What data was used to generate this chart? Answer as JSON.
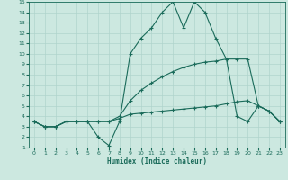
{
  "xlabel": "Humidex (Indice chaleur)",
  "xlim": [
    -0.5,
    23.5
  ],
  "ylim": [
    1,
    15
  ],
  "xticks": [
    0,
    1,
    2,
    3,
    4,
    5,
    6,
    7,
    8,
    9,
    10,
    11,
    12,
    13,
    14,
    15,
    16,
    17,
    18,
    19,
    20,
    21,
    22,
    23
  ],
  "yticks": [
    1,
    2,
    3,
    4,
    5,
    6,
    7,
    8,
    9,
    10,
    11,
    12,
    13,
    14,
    15
  ],
  "bg_color": "#cce8e0",
  "line_color": "#1a6b5a",
  "grid_color": "#b0d4cc",
  "lines": [
    {
      "x": [
        0,
        1,
        2,
        3,
        4,
        5,
        6,
        7,
        8,
        9,
        10,
        11,
        12,
        13,
        14,
        15,
        16,
        17,
        18,
        19,
        20,
        21,
        22,
        23
      ],
      "y": [
        3.5,
        3.0,
        3.0,
        3.5,
        3.5,
        3.5,
        2.0,
        1.2,
        3.5,
        10.0,
        11.5,
        12.5,
        14.0,
        15.0,
        12.5,
        15.0,
        14.0,
        11.5,
        9.5,
        4.0,
        3.5,
        5.0,
        4.5,
        3.5
      ]
    },
    {
      "x": [
        0,
        1,
        2,
        3,
        4,
        5,
        6,
        7,
        8,
        9,
        10,
        11,
        12,
        13,
        14,
        15,
        16,
        17,
        18,
        19,
        20,
        21,
        22,
        23
      ],
      "y": [
        3.5,
        3.0,
        3.0,
        3.5,
        3.5,
        3.5,
        3.5,
        3.5,
        3.8,
        4.2,
        4.3,
        4.4,
        4.5,
        4.6,
        4.7,
        4.8,
        4.9,
        5.0,
        5.2,
        5.4,
        5.5,
        5.0,
        4.5,
        3.5
      ]
    },
    {
      "x": [
        0,
        1,
        2,
        3,
        4,
        5,
        6,
        7,
        8,
        9,
        10,
        11,
        12,
        13,
        14,
        15,
        16,
        17,
        18,
        19,
        20,
        21,
        22,
        23
      ],
      "y": [
        3.5,
        3.0,
        3.0,
        3.5,
        3.5,
        3.5,
        3.5,
        3.5,
        4.0,
        5.5,
        6.5,
        7.2,
        7.8,
        8.3,
        8.7,
        9.0,
        9.2,
        9.3,
        9.5,
        9.5,
        9.5,
        5.0,
        4.5,
        3.5
      ]
    }
  ]
}
